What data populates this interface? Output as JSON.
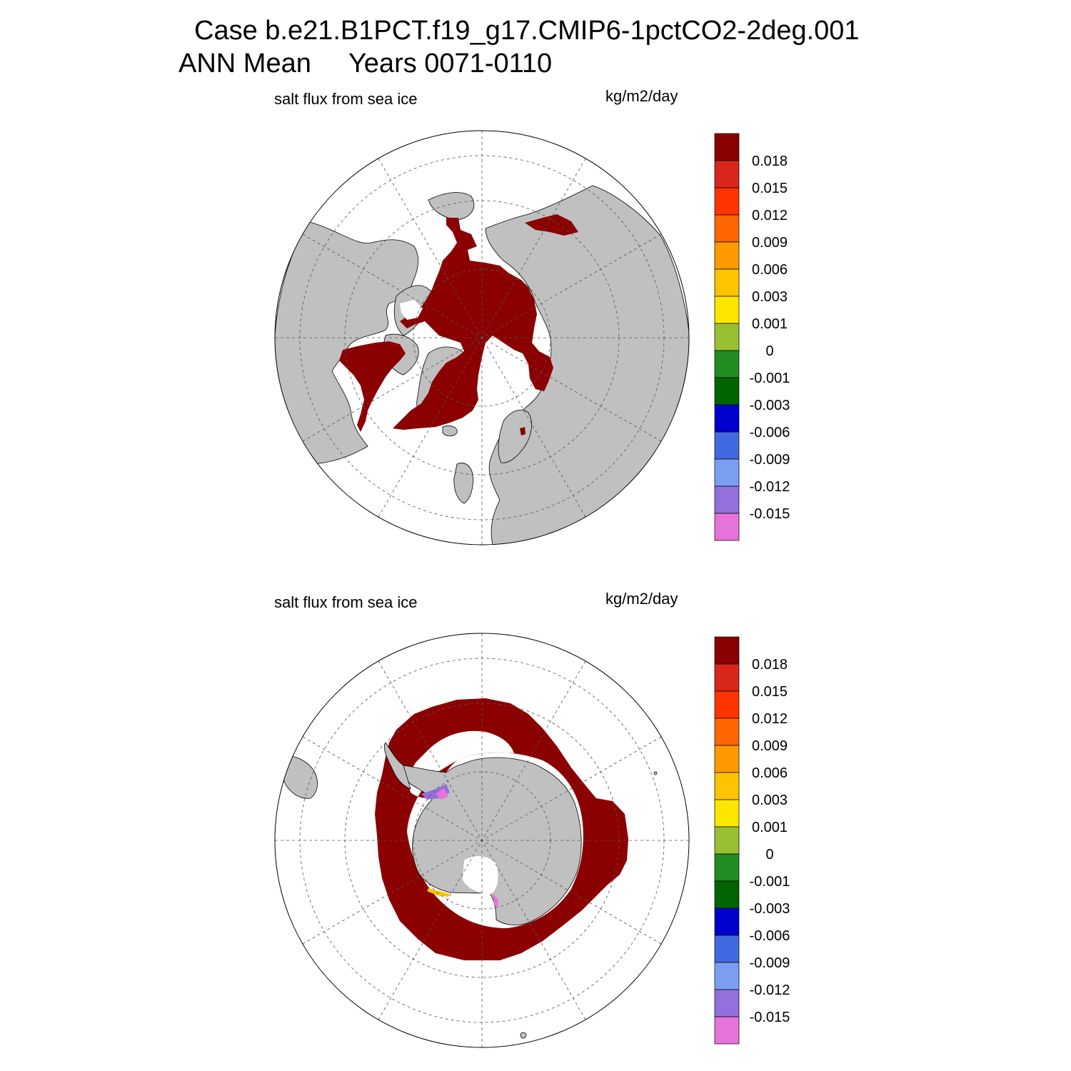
{
  "header": {
    "title_line1": "Case b.e21.B1PCT.f19_g17.CMIP6-1pctCO2-2deg.001",
    "title_line2": "ANN Mean     Years 0071-0110"
  },
  "panels": [
    {
      "id": "nh",
      "variable_label": "salt flux from sea ice",
      "units_label": "kg/m2/day",
      "hemisphere": "north"
    },
    {
      "id": "sh",
      "variable_label": "salt flux from sea ice",
      "units_label": "kg/m2/day",
      "hemisphere": "south"
    }
  ],
  "colorbar": {
    "colors": [
      "#8b0000",
      "#d9261c",
      "#ff3300",
      "#ff6600",
      "#ff9900",
      "#ffc400",
      "#ffe600",
      "#99bf33",
      "#228b22",
      "#006400",
      "#0000cd",
      "#4169e1",
      "#7b9ff0",
      "#9370db",
      "#e673d9"
    ],
    "labels": [
      "0.018",
      "0.015",
      "0.012",
      "0.009",
      "0.006",
      "0.003",
      "0.001",
      "0",
      "-0.001",
      "-0.003",
      "-0.006",
      "-0.009",
      "-0.012",
      "-0.015"
    ]
  },
  "map_style": {
    "land_color": "#c0c0c0",
    "ice_salt_color": "#8b0000",
    "ocean_color": "#ffffff",
    "grid_style": "dashed"
  }
}
